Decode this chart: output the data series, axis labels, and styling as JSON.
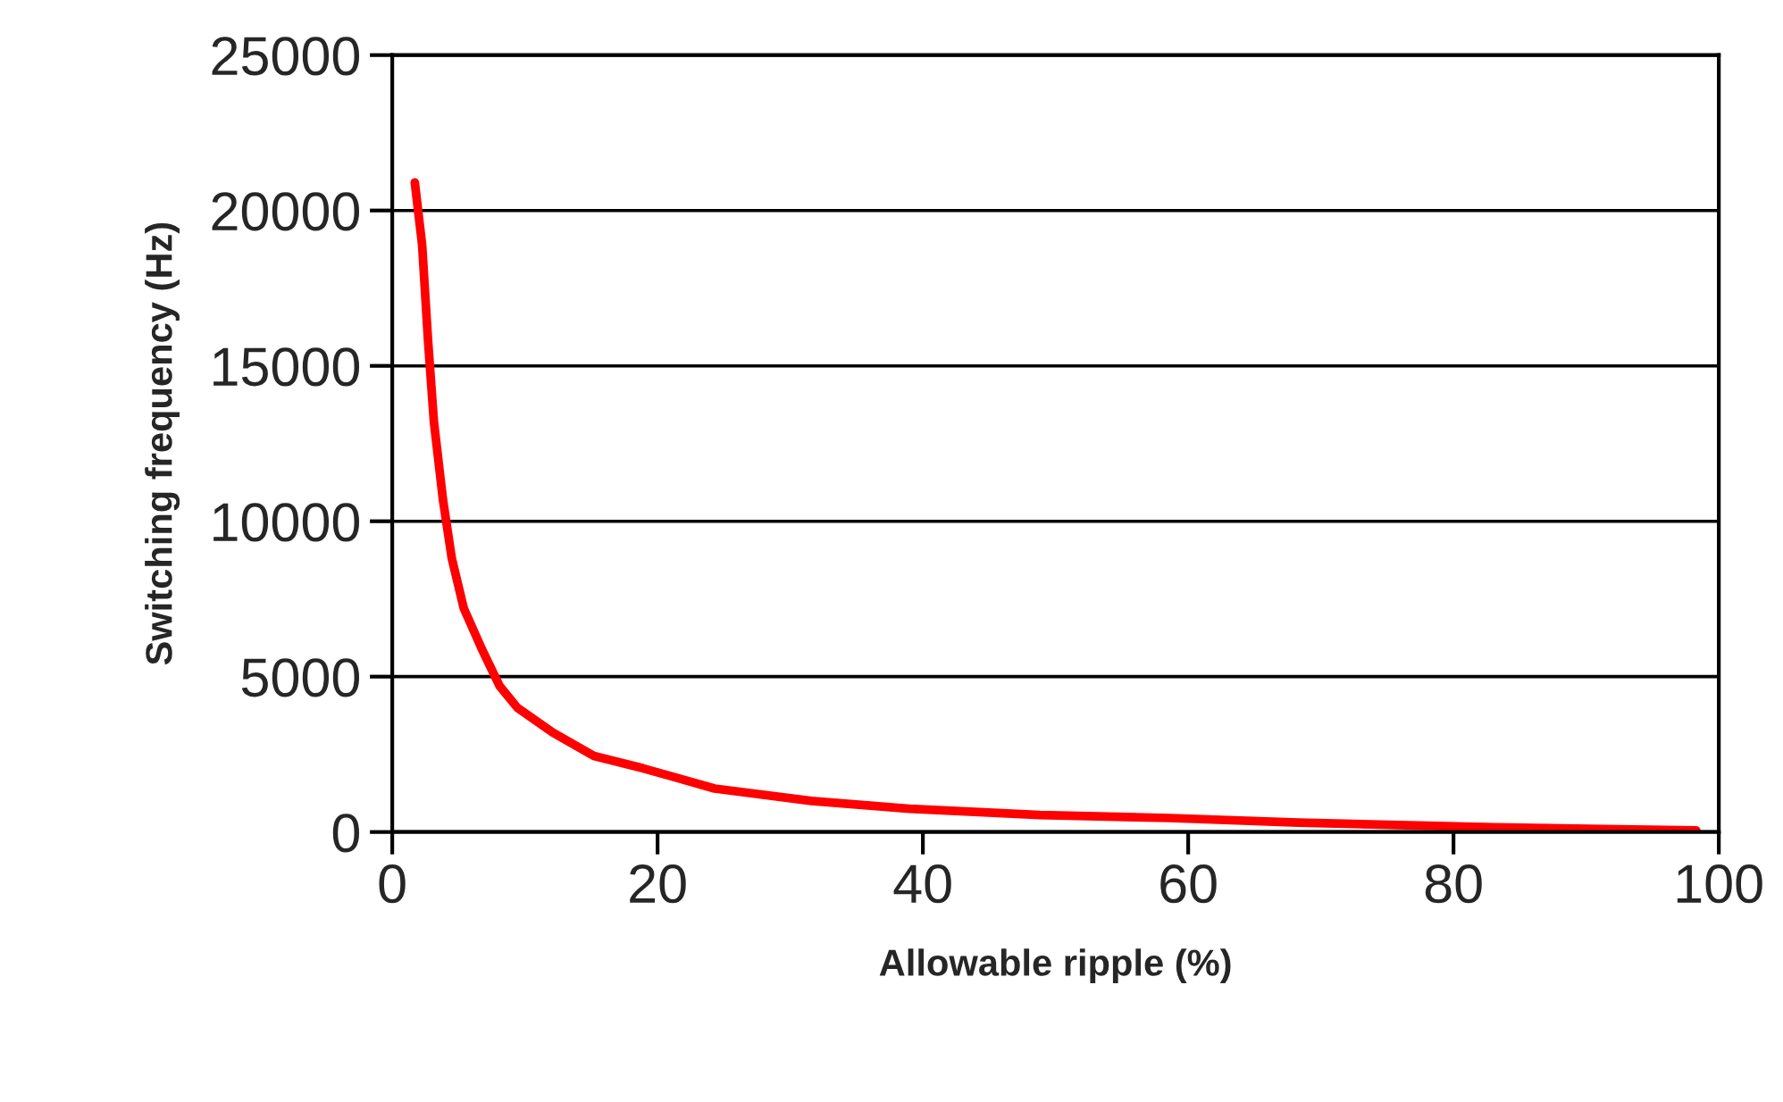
{
  "chart_data": {
    "type": "line",
    "xlabel": "Allowable ripple (%)",
    "ylabel": "Switching frequency (Hz)",
    "series": [
      {
        "color": "#ff0000",
        "x": [
          1.7,
          2.25,
          2.7,
          3.14,
          3.82,
          4.49,
          5.39,
          6.74,
          8.09,
          9.43,
          12.1,
          15.2,
          18.9,
          24.3,
          31.6,
          39.0,
          48.8,
          58.6,
          68.3,
          83.0,
          98.3
        ],
        "values": [
          20900,
          18900,
          15800,
          13200,
          10700,
          8800,
          7200,
          5900,
          4700,
          4000,
          3200,
          2450,
          2050,
          1400,
          1000,
          750,
          550,
          450,
          300,
          150,
          50
        ]
      }
    ],
    "xlim": [
      0,
      100
    ],
    "xticks": [
      0,
      20,
      40,
      60,
      80,
      100
    ],
    "ylim": [
      0,
      25000
    ],
    "yticks": [
      0,
      5000,
      10000,
      15000,
      20000,
      25000
    ],
    "grid": "y",
    "legend": false,
    "marker": "none",
    "line_style": "solid"
  }
}
